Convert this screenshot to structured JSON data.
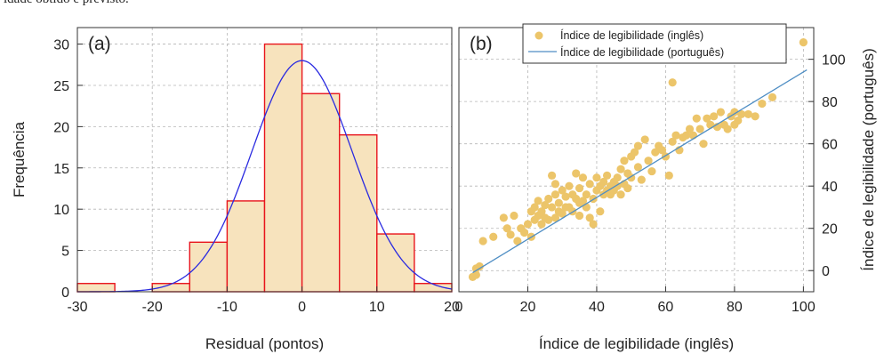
{
  "caption_fragment": "idade obtido e previsto.",
  "chart_data": [
    {
      "type": "bar",
      "panel_label": "(a)",
      "xlabel": "Residual (pontos)",
      "ylabel": "Frequência",
      "xlim": [
        -30,
        20
      ],
      "ylim": [
        0,
        32
      ],
      "xticks": [
        "-30",
        "-20",
        "-10",
        "0",
        "10",
        "20"
      ],
      "yticks": [
        "0",
        "5",
        "10",
        "15",
        "20",
        "25",
        "30"
      ],
      "bins": [
        {
          "from": -30,
          "to": -25,
          "value": 1
        },
        {
          "from": -25,
          "to": -20,
          "value": 0
        },
        {
          "from": -20,
          "to": -15,
          "value": 1
        },
        {
          "from": -15,
          "to": -10,
          "value": 6
        },
        {
          "from": -10,
          "to": -5,
          "value": 11
        },
        {
          "from": -5,
          "to": 0,
          "value": 30
        },
        {
          "from": 0,
          "to": 5,
          "value": 24
        },
        {
          "from": 5,
          "to": 10,
          "value": 19
        },
        {
          "from": 10,
          "to": 15,
          "value": 7
        },
        {
          "from": 15,
          "to": 20,
          "value": 1
        }
      ],
      "normal_fit": {
        "mean": 0,
        "sd": 6.7,
        "peak": 28
      },
      "grid": true,
      "colors": {
        "bar_fill": "#f7e3bd",
        "bar_edge": "#e8141c",
        "curve": "#2a2ae0",
        "grid": "#b5b5b5"
      }
    },
    {
      "type": "scatter",
      "panel_label": "(b)",
      "xlabel": "Índice de legibilidade (inglês)",
      "ylabel": "Índice de legibilidade (português)",
      "xlim": [
        0,
        103
      ],
      "ylim": [
        -10,
        115
      ],
      "xticks": [
        "0",
        "20",
        "40",
        "60",
        "80",
        "100"
      ],
      "yticks": [
        "0",
        "20",
        "40",
        "60",
        "80",
        "100"
      ],
      "y_axis_side": "right",
      "legend": {
        "position": "top",
        "entries": [
          "Índice de legibilidade (inglês)",
          "Índice de legibilidade (português)"
        ]
      },
      "line": {
        "x": [
          4,
          101
        ],
        "y": [
          -1,
          95
        ]
      },
      "points": [
        [
          4,
          -3
        ],
        [
          5,
          -2
        ],
        [
          5,
          1
        ],
        [
          6,
          2
        ],
        [
          7,
          14
        ],
        [
          10,
          16
        ],
        [
          13,
          25
        ],
        [
          14,
          20
        ],
        [
          15,
          17
        ],
        [
          16,
          26
        ],
        [
          17,
          14
        ],
        [
          18,
          20
        ],
        [
          19,
          18
        ],
        [
          20,
          22
        ],
        [
          21,
          28
        ],
        [
          21,
          16
        ],
        [
          22,
          24
        ],
        [
          22,
          30
        ],
        [
          23,
          26
        ],
        [
          23,
          33
        ],
        [
          24,
          22
        ],
        [
          24,
          28
        ],
        [
          25,
          25
        ],
        [
          25,
          31
        ],
        [
          26,
          24
        ],
        [
          26,
          34
        ],
        [
          27,
          30
        ],
        [
          27,
          45
        ],
        [
          28,
          25
        ],
        [
          28,
          36
        ],
        [
          28,
          41
        ],
        [
          29,
          28
        ],
        [
          29,
          32
        ],
        [
          30,
          38
        ],
        [
          30,
          27
        ],
        [
          31,
          35
        ],
        [
          31,
          30
        ],
        [
          32,
          30
        ],
        [
          32,
          40
        ],
        [
          33,
          36
        ],
        [
          33,
          28
        ],
        [
          34,
          34
        ],
        [
          34,
          46
        ],
        [
          35,
          32
        ],
        [
          35,
          26
        ],
        [
          35,
          39
        ],
        [
          36,
          33
        ],
        [
          36,
          44
        ],
        [
          37,
          30
        ],
        [
          37,
          36
        ],
        [
          38,
          25
        ],
        [
          38,
          41
        ],
        [
          39,
          22
        ],
        [
          39,
          34
        ],
        [
          40,
          38
        ],
        [
          40,
          44
        ],
        [
          41,
          28
        ],
        [
          41,
          40
        ],
        [
          42,
          36
        ],
        [
          42,
          42
        ],
        [
          43,
          38
        ],
        [
          43,
          45
        ],
        [
          44,
          40
        ],
        [
          44,
          36
        ],
        [
          45,
          42
        ],
        [
          45,
          38
        ],
        [
          46,
          44
        ],
        [
          46,
          40
        ],
        [
          47,
          36
        ],
        [
          47,
          48
        ],
        [
          48,
          41
        ],
        [
          48,
          52
        ],
        [
          49,
          39
        ],
        [
          49,
          46
        ],
        [
          50,
          54
        ],
        [
          50,
          44
        ],
        [
          51,
          56
        ],
        [
          52,
          49
        ],
        [
          52,
          59
        ],
        [
          53,
          43
        ],
        [
          54,
          62
        ],
        [
          55,
          52
        ],
        [
          56,
          47
        ],
        [
          57,
          56
        ],
        [
          58,
          59
        ],
        [
          59,
          57
        ],
        [
          60,
          54
        ],
        [
          61,
          45
        ],
        [
          62,
          61
        ],
        [
          62,
          89
        ],
        [
          63,
          64
        ],
        [
          64,
          57
        ],
        [
          65,
          63
        ],
        [
          66,
          64
        ],
        [
          67,
          67
        ],
        [
          68,
          64
        ],
        [
          69,
          72
        ],
        [
          70,
          67
        ],
        [
          71,
          60
        ],
        [
          72,
          72
        ],
        [
          73,
          69
        ],
        [
          74,
          73
        ],
        [
          75,
          68
        ],
        [
          76,
          75
        ],
        [
          77,
          69
        ],
        [
          78,
          67
        ],
        [
          79,
          73
        ],
        [
          80,
          75
        ],
        [
          80,
          69
        ],
        [
          81,
          71
        ],
        [
          82,
          74
        ],
        [
          84,
          74
        ],
        [
          86,
          73
        ],
        [
          88,
          79
        ],
        [
          91,
          82
        ],
        [
          100,
          108
        ]
      ],
      "grid": true,
      "colors": {
        "points": "#ecc56a",
        "line": "#4f8ec4",
        "grid": "#b5b5b5"
      }
    }
  ]
}
